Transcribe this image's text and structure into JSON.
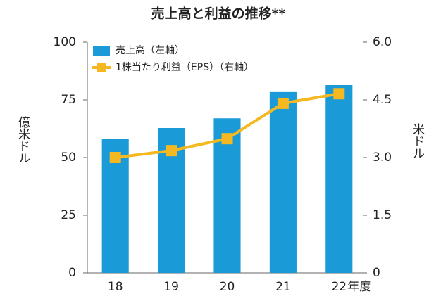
{
  "chart_data": {
    "type": "bar",
    "title": "売上高と利益の推移**",
    "categories": [
      "18",
      "19",
      "20",
      "21",
      "22"
    ],
    "x_unit": "年度",
    "ylabel": "億米ドル",
    "y2label": "米ドル",
    "ylim": [
      0,
      100
    ],
    "yticks": [
      0,
      25,
      50,
      75,
      100
    ],
    "y2lim": [
      0,
      6
    ],
    "y2ticks": [
      0,
      1.5,
      {
        "value": 3,
        "label": "3.0"
      },
      4.5,
      {
        "value": 6,
        "label": "6.0"
      }
    ],
    "grid": false,
    "series": [
      {
        "name": "売上高（左軸）",
        "type": "bar",
        "color": "#1a9ad6",
        "values": [
          58.2,
          62.8,
          67,
          78.4,
          81.4
        ]
      },
      {
        "name": "1株当たり利益（EPS）（右軸）",
        "type": "line",
        "axis": "y2",
        "color": "#f5b820",
        "values": [
          3.0,
          3.18,
          3.49,
          4.41,
          4.66
        ]
      }
    ]
  }
}
